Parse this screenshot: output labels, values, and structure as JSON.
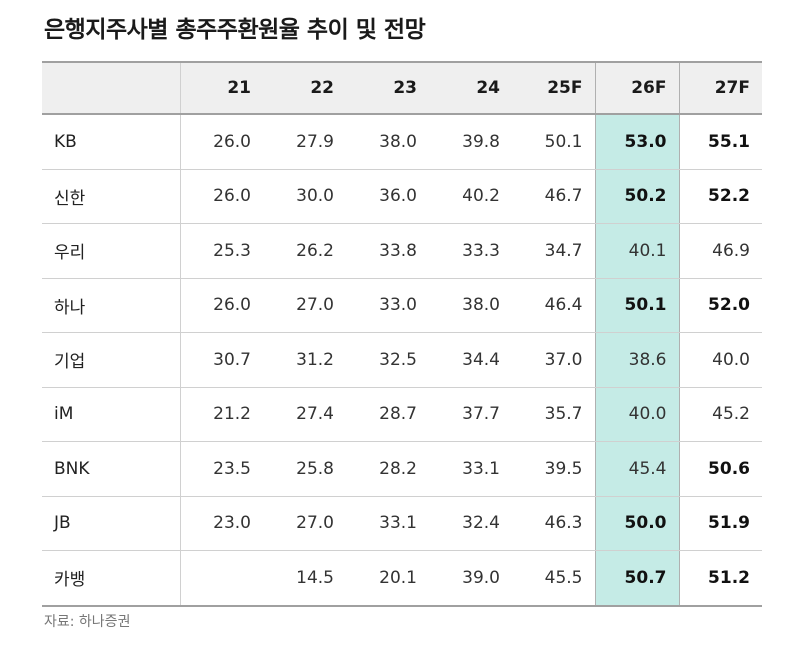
{
  "title": "은행지주사별 총주주환원율 추이 및 전망",
  "source": "자료: 하나증권",
  "table": {
    "columns": [
      "",
      "21",
      "22",
      "23",
      "24",
      "25F",
      "26F",
      "27F"
    ],
    "rows": [
      {
        "name": "KB",
        "values": [
          "26.0",
          "27.9",
          "38.0",
          "39.8",
          "50.1",
          "53.0",
          "55.1"
        ],
        "bold": [
          false,
          false,
          false,
          false,
          false,
          true,
          true
        ]
      },
      {
        "name": "신한",
        "values": [
          "26.0",
          "30.0",
          "36.0",
          "40.2",
          "46.7",
          "50.2",
          "52.2"
        ],
        "bold": [
          false,
          false,
          false,
          false,
          false,
          true,
          true
        ]
      },
      {
        "name": "우리",
        "values": [
          "25.3",
          "26.2",
          "33.8",
          "33.3",
          "34.7",
          "40.1",
          "46.9"
        ],
        "bold": [
          false,
          false,
          false,
          false,
          false,
          false,
          false
        ]
      },
      {
        "name": "하나",
        "values": [
          "26.0",
          "27.0",
          "33.0",
          "38.0",
          "46.4",
          "50.1",
          "52.0"
        ],
        "bold": [
          false,
          false,
          false,
          false,
          false,
          true,
          true
        ]
      },
      {
        "name": "기업",
        "values": [
          "30.7",
          "31.2",
          "32.5",
          "34.4",
          "37.0",
          "38.6",
          "40.0"
        ],
        "bold": [
          false,
          false,
          false,
          false,
          false,
          false,
          false
        ]
      },
      {
        "name": "iM",
        "values": [
          "21.2",
          "27.4",
          "28.7",
          "37.7",
          "35.7",
          "40.0",
          "45.2"
        ],
        "bold": [
          false,
          false,
          false,
          false,
          false,
          false,
          false
        ]
      },
      {
        "name": "BNK",
        "values": [
          "23.5",
          "25.8",
          "28.2",
          "33.1",
          "39.5",
          "45.4",
          "50.6"
        ],
        "bold": [
          false,
          false,
          false,
          false,
          false,
          false,
          true
        ]
      },
      {
        "name": "JB",
        "values": [
          "23.0",
          "27.0",
          "33.1",
          "32.4",
          "46.3",
          "50.0",
          "51.9"
        ],
        "bold": [
          false,
          false,
          false,
          false,
          false,
          true,
          true
        ]
      },
      {
        "name": "카뱅",
        "values": [
          "",
          "14.5",
          "20.1",
          "39.0",
          "45.5",
          "50.7",
          "51.2"
        ],
        "bold": [
          false,
          false,
          false,
          false,
          false,
          true,
          true
        ]
      }
    ]
  },
  "colors": {
    "highlight_column": "#c5ebe6",
    "header_background": "#efefef"
  }
}
